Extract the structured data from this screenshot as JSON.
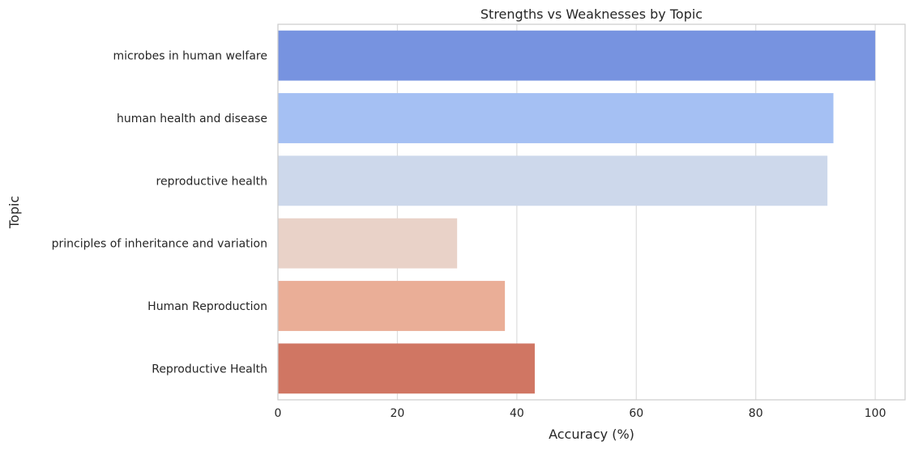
{
  "chart_data": {
    "type": "bar",
    "orientation": "horizontal",
    "title": "Strengths vs Weaknesses by Topic",
    "xlabel": "Accuracy (%)",
    "ylabel": "Topic",
    "categories": [
      "microbes in human welfare",
      "human health and disease ",
      "reproductive health ",
      "principles of inheritance and variation ",
      "Human Reproduction",
      "Reproductive Health"
    ],
    "values": [
      100,
      93,
      92,
      30,
      38,
      43
    ],
    "colors": [
      "#7793e0",
      "#a5c0f3",
      "#cdd8eb",
      "#e9d2c8",
      "#eaae97",
      "#d07663"
    ],
    "xlim": [
      0,
      105
    ],
    "xticks": [
      0,
      20,
      40,
      60,
      80,
      100
    ],
    "grid": true,
    "legend": "none"
  }
}
